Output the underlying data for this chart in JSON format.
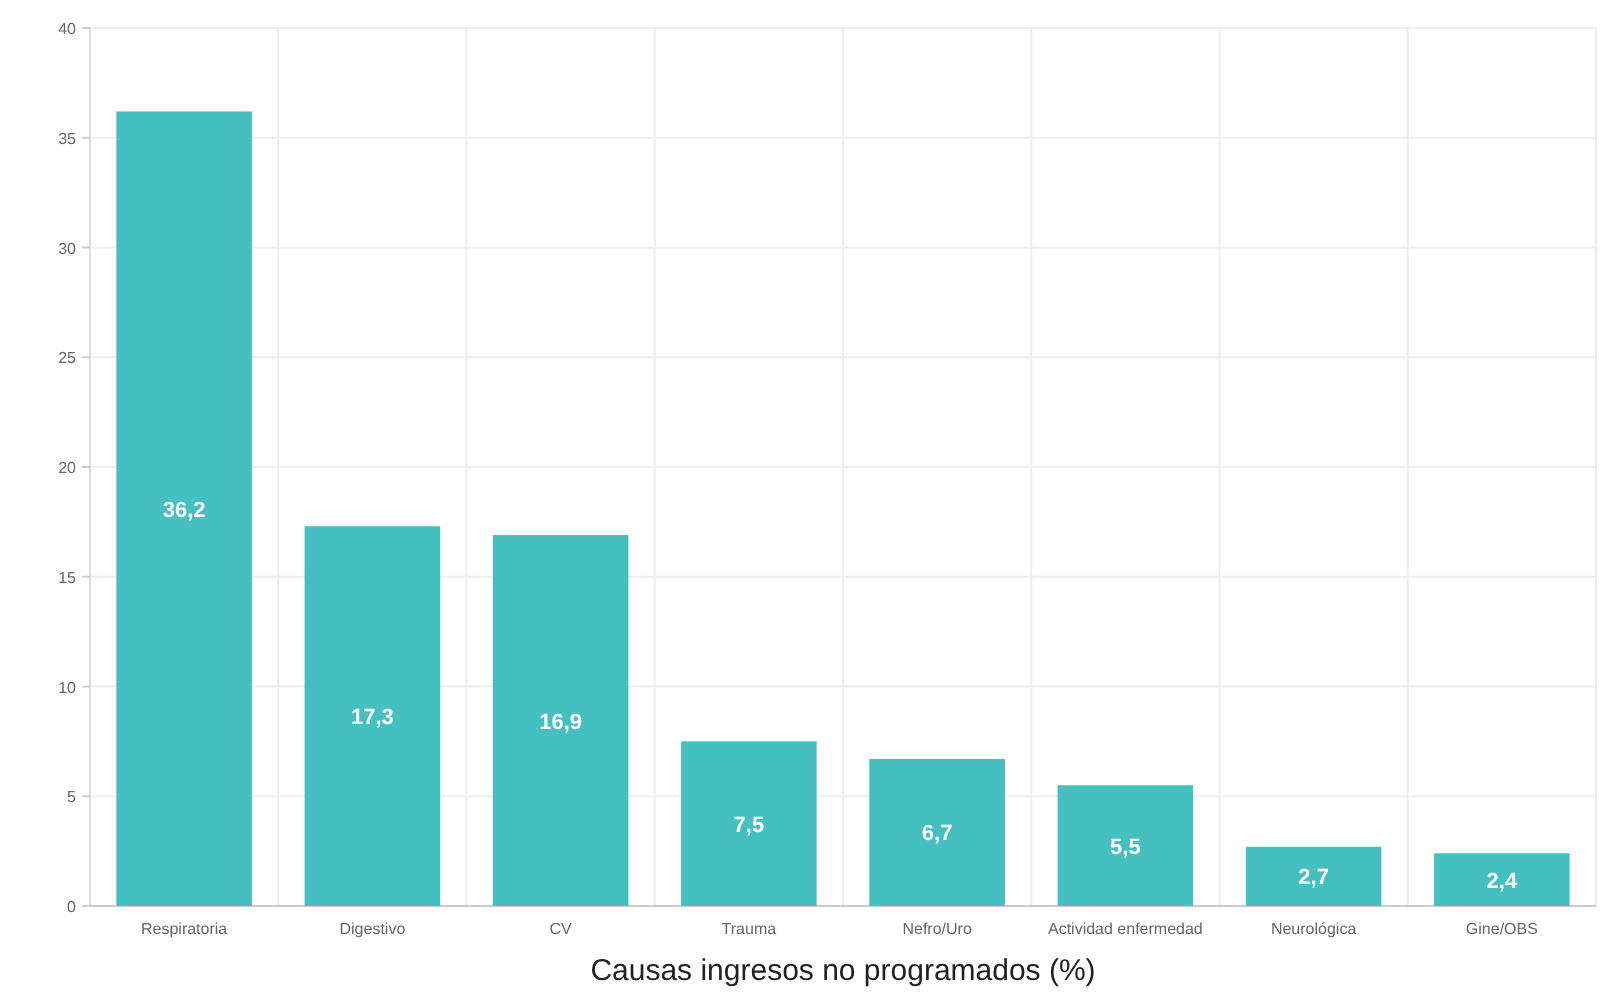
{
  "chart_data": {
    "type": "bar",
    "xlabel": "Causas ingresos no programados (%)",
    "categories": [
      "Respiratoria",
      "Digestivo",
      "CV",
      "Trauma",
      "Nefro/Uro",
      "Actividad enfermedad",
      "Neurológica",
      "Gine/OBS"
    ],
    "values": [
      36.2,
      17.3,
      16.9,
      7.5,
      6.7,
      5.5,
      2.7,
      2.4
    ],
    "value_labels": [
      "36,2",
      "17,3",
      "16,9",
      "7,5",
      "6,7",
      "5,5",
      "2,7",
      "2,4"
    ],
    "color": "#45bfbf",
    "ylim": [
      0,
      40
    ],
    "yticks": [
      0,
      5,
      10,
      15,
      20,
      25,
      30,
      35,
      40
    ],
    "grid": true
  }
}
